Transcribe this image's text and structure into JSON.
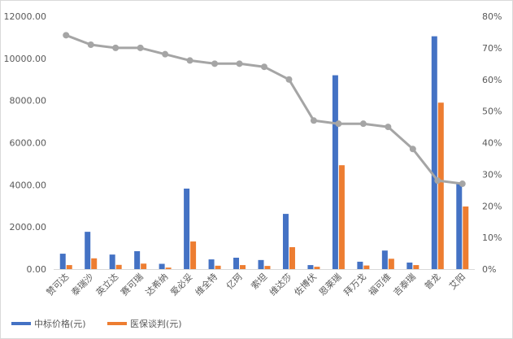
{
  "chart_data": {
    "type": "bar+line",
    "title": "",
    "categories": [
      "赞可达",
      "泰瑞沙",
      "英立达",
      "赛可瑞",
      "达希纳",
      "爱必妥",
      "维全特",
      "亿珂",
      "索坦",
      "维达莎",
      "佐博伏",
      "恩莱瑞",
      "拜万戈",
      "福可维",
      "吉泰瑞",
      "普龙",
      "艾阳"
    ],
    "series": [
      {
        "name": "中标价格(元)",
        "type": "bar",
        "axis": "left",
        "color": "#4472C4",
        "values": [
          730,
          1770,
          690,
          850,
          250,
          3820,
          460,
          540,
          430,
          2620,
          190,
          9200,
          350,
          880,
          310,
          11050,
          4050
        ]
      },
      {
        "name": "医保谈判(元)",
        "type": "bar",
        "axis": "left",
        "color": "#ED7D31",
        "values": [
          190,
          510,
          200,
          260,
          70,
          1310,
          160,
          190,
          150,
          1040,
          110,
          4930,
          170,
          490,
          190,
          7900,
          2970
        ]
      },
      {
        "name": "",
        "type": "line",
        "axis": "right",
        "color": "#A5A5A5",
        "values": [
          0.74,
          0.71,
          0.7,
          0.7,
          0.68,
          0.66,
          0.65,
          0.65,
          0.64,
          0.6,
          0.47,
          0.46,
          0.46,
          0.45,
          0.38,
          0.28,
          0.27
        ]
      }
    ],
    "y_left": {
      "min": 0,
      "max": 12000,
      "ticks": [
        "0.00",
        "2000.00",
        "4000.00",
        "6000.00",
        "8000.00",
        "10000.00",
        "12000.00"
      ]
    },
    "y_right": {
      "min": 0,
      "max": 0.8,
      "ticks": [
        "0%",
        "10%",
        "20%",
        "30%",
        "40%",
        "50%",
        "60%",
        "70%",
        "80%"
      ]
    },
    "legend": {
      "position": "bottom-left",
      "items": [
        "中标价格(元)",
        "医保谈判(元)"
      ]
    },
    "grid": false
  }
}
